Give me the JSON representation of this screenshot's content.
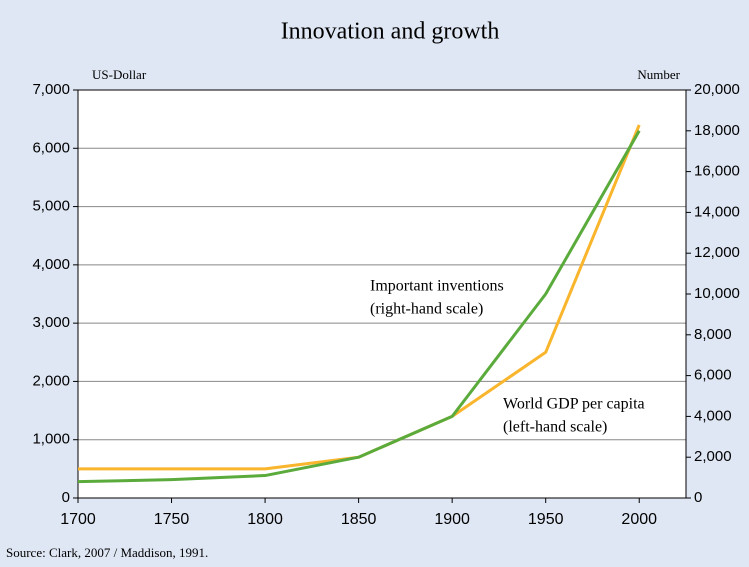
{
  "chart_data": {
    "type": "line",
    "title": "Innovation and growth",
    "y_label": "US-Dollar",
    "y2_label": "Number",
    "source": "Source: Clark, 2007 / Maddison, 1991.",
    "x": [
      1700,
      1750,
      1800,
      1850,
      1900,
      1950,
      2000
    ],
    "series": [
      {
        "name": "World GDP per capita (left-hand scale)",
        "color": "#f9b52c",
        "values": [
          500,
          500,
          500,
          700,
          1400,
          2500,
          6400
        ]
      },
      {
        "name": "Important inventions (right-hand scale)",
        "color": "#5aab3c",
        "axis": "y2",
        "values": [
          800,
          900,
          1100,
          2000,
          4000,
          10000,
          18000
        ]
      }
    ],
    "annotations": [
      {
        "lines": [
          "Important inventions",
          "(right-hand scale)"
        ]
      },
      {
        "lines": [
          "World GDP per capita",
          "(left-hand scale)"
        ]
      }
    ],
    "xlim": [
      1700,
      2025
    ],
    "xticks": [
      1700,
      1750,
      1800,
      1850,
      1900,
      1950,
      2000
    ],
    "ylim": [
      0,
      7000
    ],
    "yticks": [
      0,
      {
        "value": 1000,
        "label": "1,000"
      },
      {
        "value": 2000,
        "label": "2,000"
      },
      {
        "value": 3000,
        "label": "3,000"
      },
      {
        "value": 4000,
        "label": "4,000"
      },
      {
        "value": 5000,
        "label": "5,000"
      },
      {
        "value": 6000,
        "label": "6,000"
      },
      {
        "value": 7000,
        "label": "7,000"
      }
    ],
    "y2lim": [
      0,
      20000
    ],
    "y2ticks": [
      0,
      {
        "value": 2000,
        "label": "2,000"
      },
      {
        "value": 4000,
        "label": "4,000"
      },
      {
        "value": 6000,
        "label": "6,000"
      },
      {
        "value": 8000,
        "label": "8,000"
      },
      {
        "value": 10000,
        "label": "10,000"
      },
      {
        "value": 12000,
        "label": "12,000"
      },
      {
        "value": 14000,
        "label": "14,000"
      },
      {
        "value": 16000,
        "label": "16,000"
      },
      {
        "value": 18000,
        "label": "18,000"
      },
      {
        "value": 20000,
        "label": "20,000"
      }
    ],
    "grid": true
  }
}
